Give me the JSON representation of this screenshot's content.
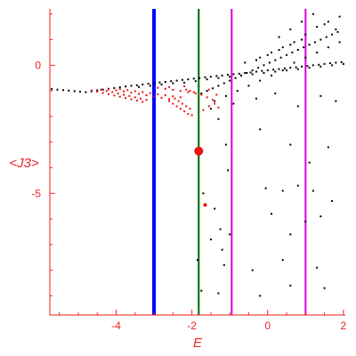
{
  "chart_data": {
    "type": "scatter",
    "title": "",
    "xlabel": "E",
    "ylabel": "<J3>",
    "xlim": [
      -5.75,
      2.05
    ],
    "ylim": [
      -9.75,
      2.2
    ],
    "grid": false,
    "axis_color": "#ee2222",
    "x_ticks": [
      {
        "value": -4,
        "label": "-4"
      },
      {
        "value": -2,
        "label": "-2"
      },
      {
        "value": 0,
        "label": "0"
      },
      {
        "value": 2,
        "label": "2"
      }
    ],
    "y_ticks": [
      {
        "value": 0,
        "label": "0"
      },
      {
        "value": -5,
        "label": "-5"
      }
    ],
    "vertical_lines": [
      {
        "x": -3.0,
        "color": "#0000ff",
        "width": 4
      },
      {
        "x": -1.82,
        "color": "#006600",
        "width": 2
      },
      {
        "x": -0.95,
        "color": "#dd00dd",
        "width": 2
      },
      {
        "x": 1.0,
        "color": "#dd00dd",
        "width": 2
      }
    ],
    "series": [
      {
        "color": "#000000",
        "points": [
          [
            -5.7,
            -0.93
          ],
          [
            -5.55,
            -0.95
          ],
          [
            -5.4,
            -0.97
          ],
          [
            -5.25,
            -0.99
          ],
          [
            -5.1,
            -1.01
          ],
          [
            -4.95,
            -1.03
          ],
          [
            -4.8,
            -1.05
          ],
          [
            -4.65,
            -1.02
          ],
          [
            -4.5,
            -0.98
          ],
          [
            -4.35,
            -0.95
          ],
          [
            -4.2,
            -0.92
          ],
          [
            -4.05,
            -0.89
          ],
          [
            -3.9,
            -0.86
          ],
          [
            -3.75,
            -0.83
          ],
          [
            -3.6,
            -0.8
          ],
          [
            -3.45,
            -0.78
          ],
          [
            -3.3,
            -0.75
          ],
          [
            -3.15,
            -0.72
          ],
          [
            -3.0,
            -0.7
          ],
          [
            -2.85,
            -0.67
          ],
          [
            -2.7,
            -0.65
          ],
          [
            -2.55,
            -0.62
          ],
          [
            -2.4,
            -0.6
          ],
          [
            -2.25,
            -0.57
          ],
          [
            -2.1,
            -0.55
          ],
          [
            -1.95,
            -0.52
          ],
          [
            -1.8,
            -0.5
          ],
          [
            -1.65,
            -0.47
          ],
          [
            -1.5,
            -0.45
          ],
          [
            -1.35,
            -0.42
          ],
          [
            -1.2,
            -0.4
          ],
          [
            -1.05,
            -0.37
          ],
          [
            -0.9,
            -0.35
          ],
          [
            -0.75,
            -0.33
          ],
          [
            -0.6,
            -0.3
          ],
          [
            -0.45,
            -0.28
          ],
          [
            -0.3,
            -0.25
          ],
          [
            -0.15,
            -0.22
          ],
          [
            0.0,
            -0.2
          ],
          [
            0.15,
            -0.17
          ],
          [
            0.3,
            -0.15
          ],
          [
            0.45,
            -0.12
          ],
          [
            0.6,
            -0.1
          ],
          [
            0.75,
            -0.08
          ],
          [
            0.9,
            -0.05
          ],
          [
            1.05,
            -0.03
          ],
          [
            1.2,
            0.0
          ],
          [
            1.35,
            0.02
          ],
          [
            1.5,
            0.05
          ],
          [
            1.65,
            0.08
          ],
          [
            1.8,
            0.1
          ],
          [
            1.95,
            0.12
          ],
          [
            -3.4,
            -0.85
          ],
          [
            -3.1,
            -0.8
          ],
          [
            -2.8,
            -0.75
          ],
          [
            -2.5,
            -0.7
          ],
          [
            -2.2,
            -0.68
          ],
          [
            -1.9,
            -0.62
          ],
          [
            -1.6,
            -0.55
          ],
          [
            -1.3,
            -0.5
          ],
          [
            -1.0,
            -0.45
          ],
          [
            -0.7,
            -0.4
          ],
          [
            -0.4,
            -0.35
          ],
          [
            -0.1,
            -0.3
          ],
          [
            0.2,
            -0.25
          ],
          [
            0.5,
            -0.2
          ],
          [
            0.8,
            -0.15
          ],
          [
            1.1,
            -0.1
          ],
          [
            1.4,
            -0.05
          ],
          [
            1.7,
            0.0
          ],
          [
            2.0,
            0.05
          ],
          [
            -1.75,
            -1.1
          ],
          [
            -1.6,
            -1.0
          ],
          [
            -1.45,
            -0.9
          ],
          [
            -1.3,
            -0.8
          ],
          [
            -1.15,
            -0.7
          ],
          [
            -1.0,
            -0.6
          ],
          [
            -0.85,
            -0.5
          ],
          [
            -0.7,
            -0.4
          ],
          [
            -0.55,
            -0.3
          ],
          [
            -0.4,
            -0.2
          ],
          [
            -0.25,
            -0.1
          ],
          [
            -0.1,
            0.0
          ],
          [
            0.05,
            0.1
          ],
          [
            0.2,
            0.2
          ],
          [
            0.35,
            0.3
          ],
          [
            0.5,
            0.4
          ],
          [
            0.65,
            0.5
          ],
          [
            0.8,
            0.6
          ],
          [
            0.95,
            0.7
          ],
          [
            1.1,
            0.8
          ],
          [
            1.25,
            0.9
          ],
          [
            1.4,
            1.0
          ],
          [
            1.55,
            1.1
          ],
          [
            1.7,
            1.2
          ],
          [
            1.85,
            1.3
          ],
          [
            -1.4,
            -1.4
          ],
          [
            -1.1,
            -1.2
          ],
          [
            -0.8,
            -1.0
          ],
          [
            -0.5,
            -0.8
          ],
          [
            -0.2,
            -0.6
          ],
          [
            0.1,
            -0.4
          ],
          [
            0.4,
            -0.2
          ],
          [
            0.7,
            0.1
          ],
          [
            1.0,
            0.3
          ],
          [
            1.3,
            0.5
          ],
          [
            1.6,
            0.7
          ],
          [
            1.9,
            0.9
          ],
          [
            -0.2,
            0.3
          ],
          [
            0.1,
            0.5
          ],
          [
            0.4,
            0.7
          ],
          [
            0.7,
            0.9
          ],
          [
            1.0,
            1.2
          ],
          [
            1.3,
            1.5
          ],
          [
            1.6,
            1.7
          ],
          [
            1.9,
            1.9
          ],
          [
            0.3,
            1.1
          ],
          [
            0.6,
            1.4
          ],
          [
            0.9,
            1.7
          ],
          [
            1.2,
            2.0
          ],
          [
            1.5,
            1.6
          ],
          [
            1.8,
            1.4
          ],
          [
            -0.6,
            0.1
          ],
          [
            -0.3,
            0.2
          ],
          [
            0.0,
            0.4
          ],
          [
            0.3,
            0.6
          ],
          [
            0.6,
            0.8
          ],
          [
            0.9,
            1.0
          ],
          [
            -1.5,
            -1.7
          ],
          [
            -0.9,
            -1.5
          ],
          [
            -0.3,
            -1.3
          ],
          [
            0.2,
            -1.1
          ],
          [
            0.8,
            -1.6
          ],
          [
            1.4,
            -1.2
          ],
          [
            1.8,
            -1.4
          ],
          [
            -1.3,
            -2.1
          ],
          [
            -1.1,
            -3.1
          ],
          [
            -1.05,
            -4.1
          ],
          [
            -0.2,
            -2.5
          ],
          [
            0.6,
            -3.1
          ],
          [
            1.1,
            -3.8
          ],
          [
            1.6,
            -3.2
          ],
          [
            -1.7,
            -5.0
          ],
          [
            -1.4,
            -5.6
          ],
          [
            -1.25,
            -6.4
          ],
          [
            -0.05,
            -4.8
          ],
          [
            0.4,
            -4.9
          ],
          [
            0.8,
            -4.7
          ],
          [
            1.2,
            -4.9
          ],
          [
            1.7,
            -5.3
          ],
          [
            -1.5,
            -6.8
          ],
          [
            -1.2,
            -7.2
          ],
          [
            -1.0,
            -6.6
          ],
          [
            0.1,
            -5.8
          ],
          [
            0.6,
            -6.6
          ],
          [
            1.0,
            -6.1
          ],
          [
            1.4,
            -5.9
          ],
          [
            -1.85,
            -7.6
          ],
          [
            -1.15,
            -7.8
          ],
          [
            -0.4,
            -8.0
          ],
          [
            0.4,
            -7.6
          ],
          [
            1.3,
            -7.9
          ],
          [
            -1.75,
            -8.8
          ],
          [
            -1.3,
            -8.9
          ],
          [
            -0.2,
            -9.0
          ],
          [
            0.6,
            -8.6
          ],
          [
            1.5,
            -8.7
          ]
        ]
      },
      {
        "color": "#ee1111",
        "points": [
          [
            -4.65,
            -0.98
          ],
          [
            -4.5,
            -1.03
          ],
          [
            -4.35,
            -1.08
          ],
          [
            -4.2,
            -1.13
          ],
          [
            -4.05,
            -1.18
          ],
          [
            -3.9,
            -1.23
          ],
          [
            -3.75,
            -1.28
          ],
          [
            -3.6,
            -1.33
          ],
          [
            -3.45,
            -1.38
          ],
          [
            -3.3,
            -1.43
          ],
          [
            -4.4,
            -0.95
          ],
          [
            -4.25,
            -1.0
          ],
          [
            -4.1,
            -1.05
          ],
          [
            -3.95,
            -1.1
          ],
          [
            -3.8,
            -1.15
          ],
          [
            -3.65,
            -1.2
          ],
          [
            -3.5,
            -1.25
          ],
          [
            -3.35,
            -1.3
          ],
          [
            -3.2,
            -1.35
          ],
          [
            -4.2,
            -0.94
          ],
          [
            -4.0,
            -0.98
          ],
          [
            -3.8,
            -1.02
          ],
          [
            -3.6,
            -1.07
          ],
          [
            -3.4,
            -1.12
          ],
          [
            -3.2,
            -1.17
          ],
          [
            -3.0,
            -1.22
          ],
          [
            -2.8,
            -1.27
          ],
          [
            -2.6,
            -1.32
          ],
          [
            -3.9,
            -0.93
          ],
          [
            -3.7,
            -0.97
          ],
          [
            -3.5,
            -1.01
          ],
          [
            -3.3,
            -1.05
          ],
          [
            -3.1,
            -1.09
          ],
          [
            -2.9,
            -1.13
          ],
          [
            -2.7,
            -1.17
          ],
          [
            -2.5,
            -1.21
          ],
          [
            -2.3,
            -1.25
          ],
          [
            -2.9,
            -0.88
          ],
          [
            -2.7,
            -0.92
          ],
          [
            -2.5,
            -0.96
          ],
          [
            -2.3,
            -1.0
          ],
          [
            -2.1,
            -1.05
          ],
          [
            -1.9,
            -1.1
          ],
          [
            -2.6,
            -1.4
          ],
          [
            -2.5,
            -1.5
          ],
          [
            -2.4,
            -1.6
          ],
          [
            -2.3,
            -1.7
          ],
          [
            -2.2,
            -1.8
          ],
          [
            -2.1,
            -1.9
          ],
          [
            -2.0,
            -1.95
          ],
          [
            -2.45,
            -1.3
          ],
          [
            -2.35,
            -1.4
          ],
          [
            -2.25,
            -1.5
          ],
          [
            -2.15,
            -1.6
          ],
          [
            -2.05,
            -1.7
          ],
          [
            -2.15,
            -0.95
          ],
          [
            -2.05,
            -1.0
          ],
          [
            -1.95,
            -1.05
          ],
          [
            -1.75,
            -1.15
          ],
          [
            -1.6,
            -1.25
          ],
          [
            -1.45,
            -1.35
          ],
          [
            -1.7,
            -1.75
          ],
          [
            -1.55,
            -1.6
          ],
          [
            -1.4,
            -1.5
          ],
          [
            -1.3,
            -1.65
          ],
          [
            -2.6,
            -0.85
          ],
          [
            -2.2,
            -0.82
          ],
          [
            -1.55,
            -0.95
          ],
          [
            -1.35,
            -1.15
          ]
        ]
      },
      {
        "color": "#ee1111",
        "radius": 5,
        "points": [
          [
            -1.82,
            -3.35
          ]
        ]
      },
      {
        "color": "#ee1111",
        "radius": 2,
        "points": [
          [
            -1.65,
            -5.45
          ]
        ]
      }
    ]
  }
}
